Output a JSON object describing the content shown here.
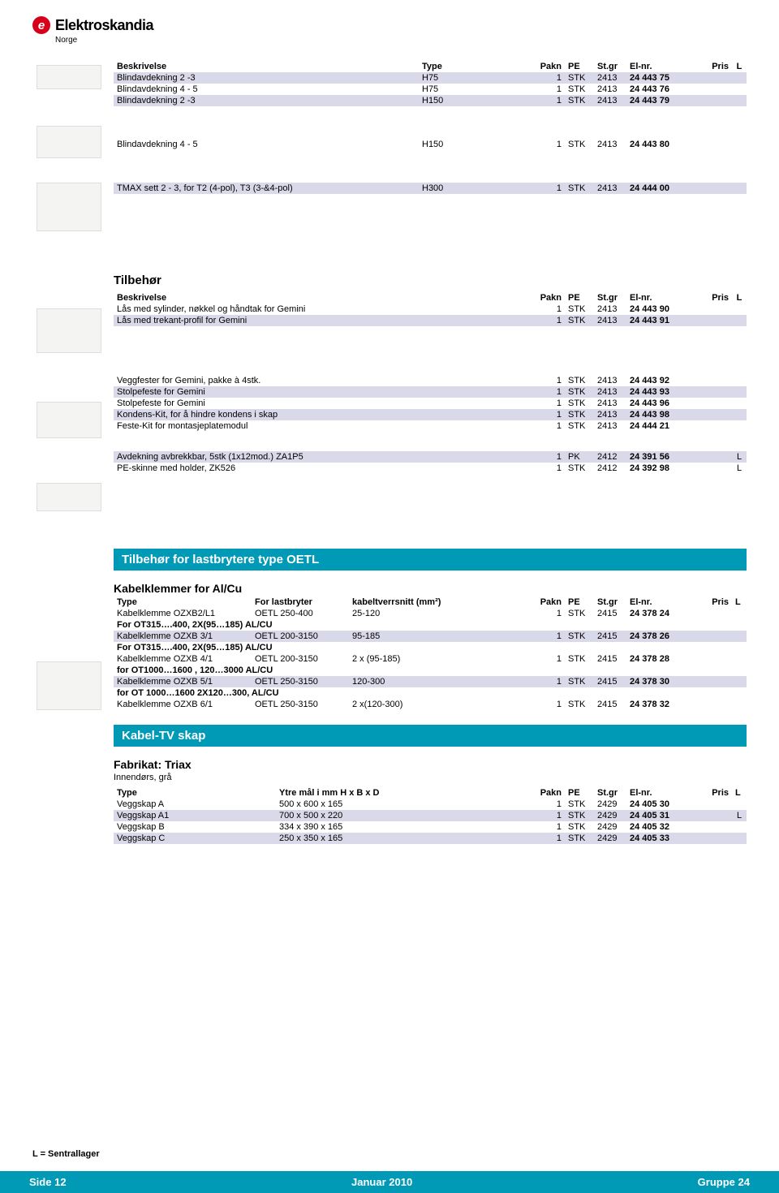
{
  "brand": {
    "mark": "e",
    "name": "Elektroskandia",
    "sub": "Norge"
  },
  "header_cols": {
    "desc": "Beskrivelse",
    "type": "Type",
    "pakn": "Pakn",
    "pe": "PE",
    "stgr": "St.gr",
    "elnr": "El-nr.",
    "pris": "Pris",
    "l": "L"
  },
  "t1": {
    "rows": [
      {
        "desc": "Blindavdekning 2 -3",
        "type": "H75",
        "pakn": "1",
        "pe": "STK",
        "stgr": "2413",
        "elnr": "24 443 75",
        "alt": true
      },
      {
        "desc": "Blindavdekning 4 - 5",
        "type": "H75",
        "pakn": "1",
        "pe": "STK",
        "stgr": "2413",
        "elnr": "24 443 76"
      },
      {
        "desc": "Blindavdekning 2 -3",
        "type": "H150",
        "pakn": "1",
        "pe": "STK",
        "stgr": "2413",
        "elnr": "24 443 79",
        "alt": true
      }
    ]
  },
  "t2": {
    "rows": [
      {
        "desc": "Blindavdekning 4 - 5",
        "type": "H150",
        "pakn": "1",
        "pe": "STK",
        "stgr": "2413",
        "elnr": "24 443 80"
      }
    ]
  },
  "t3": {
    "rows": [
      {
        "desc": "TMAX sett 2 - 3, for T2 (4-pol), T3 (3-&4-pol)",
        "type": "H300",
        "pakn": "1",
        "pe": "STK",
        "stgr": "2413",
        "elnr": "24 444 00",
        "alt": true
      }
    ]
  },
  "tilbehor": {
    "title": "Tilbehør",
    "rows": [
      {
        "desc": "Lås med sylinder, nøkkel og håndtak for Gemini",
        "pakn": "1",
        "pe": "STK",
        "stgr": "2413",
        "elnr": "24 443 90"
      },
      {
        "desc": "Lås med trekant-profil for Gemini",
        "pakn": "1",
        "pe": "STK",
        "stgr": "2413",
        "elnr": "24 443 91",
        "alt": true
      }
    ]
  },
  "t5": {
    "rows": [
      {
        "desc": "Veggfester for Gemini, pakke à 4stk.",
        "pakn": "1",
        "pe": "STK",
        "stgr": "2413",
        "elnr": "24 443 92"
      },
      {
        "desc": "Stolpefeste for Gemini",
        "pakn": "1",
        "pe": "STK",
        "stgr": "2413",
        "elnr": "24 443 93",
        "alt": true
      },
      {
        "desc": "Stolpefeste for Gemini",
        "pakn": "1",
        "pe": "STK",
        "stgr": "2413",
        "elnr": "24 443 96"
      },
      {
        "desc": "Kondens-Kit, for å hindre kondens i skap",
        "pakn": "1",
        "pe": "STK",
        "stgr": "2413",
        "elnr": "24 443 98",
        "alt": true
      },
      {
        "desc": "Feste-Kit for montasjeplatemodul",
        "pakn": "1",
        "pe": "STK",
        "stgr": "2413",
        "elnr": "24 444 21"
      }
    ]
  },
  "t6": {
    "rows": [
      {
        "desc": "Avdekning avbrekkbar, 5stk (1x12mod.) ZA1P5",
        "pakn": "1",
        "pe": "PK",
        "stgr": "2412",
        "elnr": "24 391 56",
        "l": "L",
        "alt": true
      },
      {
        "desc": "PE-skinne med holder, ZK526",
        "pakn": "1",
        "pe": "STK",
        "stgr": "2412",
        "elnr": "24 392 98",
        "l": "L"
      }
    ]
  },
  "oetl": {
    "banner": "Tilbehør for lastbrytere type OETL",
    "sub": "Kabelklemmer for Al/Cu",
    "cols": {
      "type": "Type",
      "for": "For lastbryter",
      "kabel": "kabeltverrsnitt (mm²)"
    },
    "rows": [
      {
        "type": "Kabelklemme OZXB2/L1",
        "for": "OETL 250-400",
        "kabel": "25-120",
        "pakn": "1",
        "pe": "STK",
        "stgr": "2415",
        "elnr": "24 378 24"
      },
      {
        "note": "For OT315….400, 2X(95…185) AL/CU",
        "bold": true
      },
      {
        "type": "Kabelklemme OZXB 3/1",
        "for": "OETL 200-3150",
        "kabel": "95-185",
        "pakn": "1",
        "pe": "STK",
        "stgr": "2415",
        "elnr": "24 378 26",
        "alt": true
      },
      {
        "note": "For OT315….400, 2X(95…185) AL/CU",
        "bold": true
      },
      {
        "type": "Kabelklemme OZXB 4/1",
        "for": "OETL 200-3150",
        "kabel": "2 x (95-185)",
        "pakn": "1",
        "pe": "STK",
        "stgr": "2415",
        "elnr": "24 378 28"
      },
      {
        "note": "for OT1000…1600 , 120…3000  AL/CU",
        "bold": true
      },
      {
        "type": "Kabelklemme OZXB 5/1",
        "for": "OETL 250-3150",
        "kabel": "120-300",
        "pakn": "1",
        "pe": "STK",
        "stgr": "2415",
        "elnr": "24 378 30",
        "alt": true
      },
      {
        "note": "for OT 1000…1600 2X120…300,  AL/CU",
        "bold": true
      },
      {
        "type": "Kabelklemme OZXB 6/1",
        "for": "OETL 250-3150",
        "kabel": "2 x(120-300)",
        "pakn": "1",
        "pe": "STK",
        "stgr": "2415",
        "elnr": "24 378 32"
      }
    ]
  },
  "kabeltv": {
    "banner": "Kabel-TV skap",
    "sub": "Fabrikat: Triax",
    "sub2": "Innendørs, grå",
    "cols": {
      "type": "Type",
      "ytre": "Ytre mål i mm H x B x D"
    },
    "rows": [
      {
        "type": "Veggskap A",
        "ytre": "500 x 600 x 165",
        "pakn": "1",
        "pe": "STK",
        "stgr": "2429",
        "elnr": "24 405 30"
      },
      {
        "type": "Veggskap A1",
        "ytre": "700 x 500 x 220",
        "pakn": "1",
        "pe": "STK",
        "stgr": "2429",
        "elnr": "24 405 31",
        "l": "L",
        "alt": true
      },
      {
        "type": "Veggskap B",
        "ytre": "334 x 390 x 165",
        "pakn": "1",
        "pe": "STK",
        "stgr": "2429",
        "elnr": "24 405 32"
      },
      {
        "type": "Veggskap C",
        "ytre": "250 x 350 x 165",
        "pakn": "1",
        "pe": "STK",
        "stgr": "2429",
        "elnr": "24 405 33",
        "alt": true
      }
    ]
  },
  "footer": {
    "note": "L = Sentrallager",
    "side_label": "Side",
    "side": "12",
    "date": "Januar 2010",
    "gruppe_label": "Gruppe",
    "gruppe": "24"
  },
  "colors": {
    "banner": "#0099b6",
    "alt_row": "#d9d9e9",
    "brand_red": "#d7001a"
  }
}
